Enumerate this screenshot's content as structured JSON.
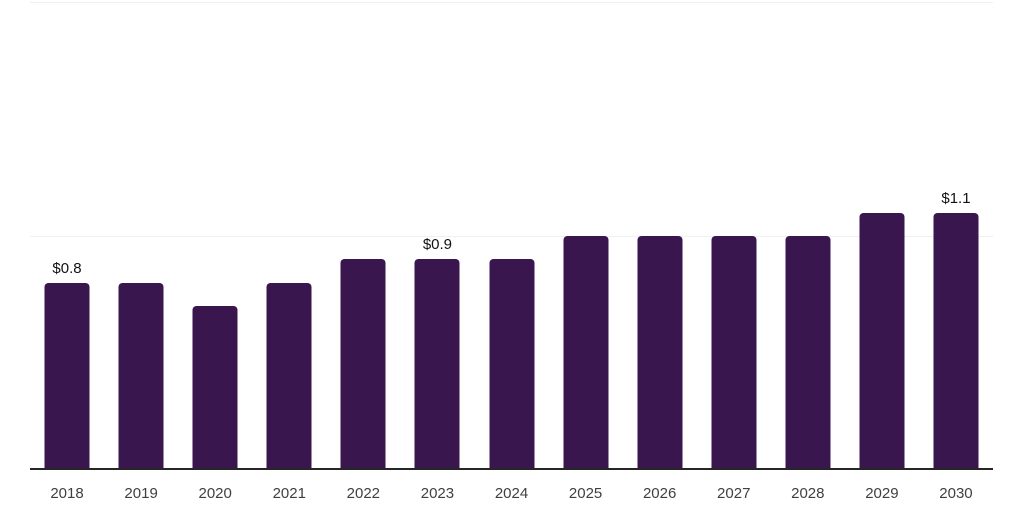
{
  "chart_data": {
    "type": "bar",
    "title": "",
    "xlabel": "",
    "ylabel": "",
    "categories": [
      "2018",
      "2019",
      "2020",
      "2021",
      "2022",
      "2023",
      "2024",
      "2025",
      "2026",
      "2027",
      "2028",
      "2029",
      "2030"
    ],
    "values": [
      0.8,
      0.8,
      0.7,
      0.8,
      0.9,
      0.9,
      0.9,
      1.0,
      1.0,
      1.0,
      1.0,
      1.1,
      1.1
    ],
    "bar_labels": [
      "$0.8",
      "",
      "",
      "",
      "",
      "$0.9",
      "",
      "",
      "",
      "",
      "",
      "",
      "$1.1"
    ],
    "ylim": [
      0,
      2
    ],
    "gridlines_y": [
      1.0,
      2.0
    ],
    "grid": "horizontal-only",
    "legend_position": "none"
  },
  "colors": {
    "bar": "#3a164f",
    "axis_line": "#262626",
    "gridline": "#f0f0f0",
    "tick_label": "#404040",
    "data_label": "#111111",
    "background": "#ffffff"
  }
}
